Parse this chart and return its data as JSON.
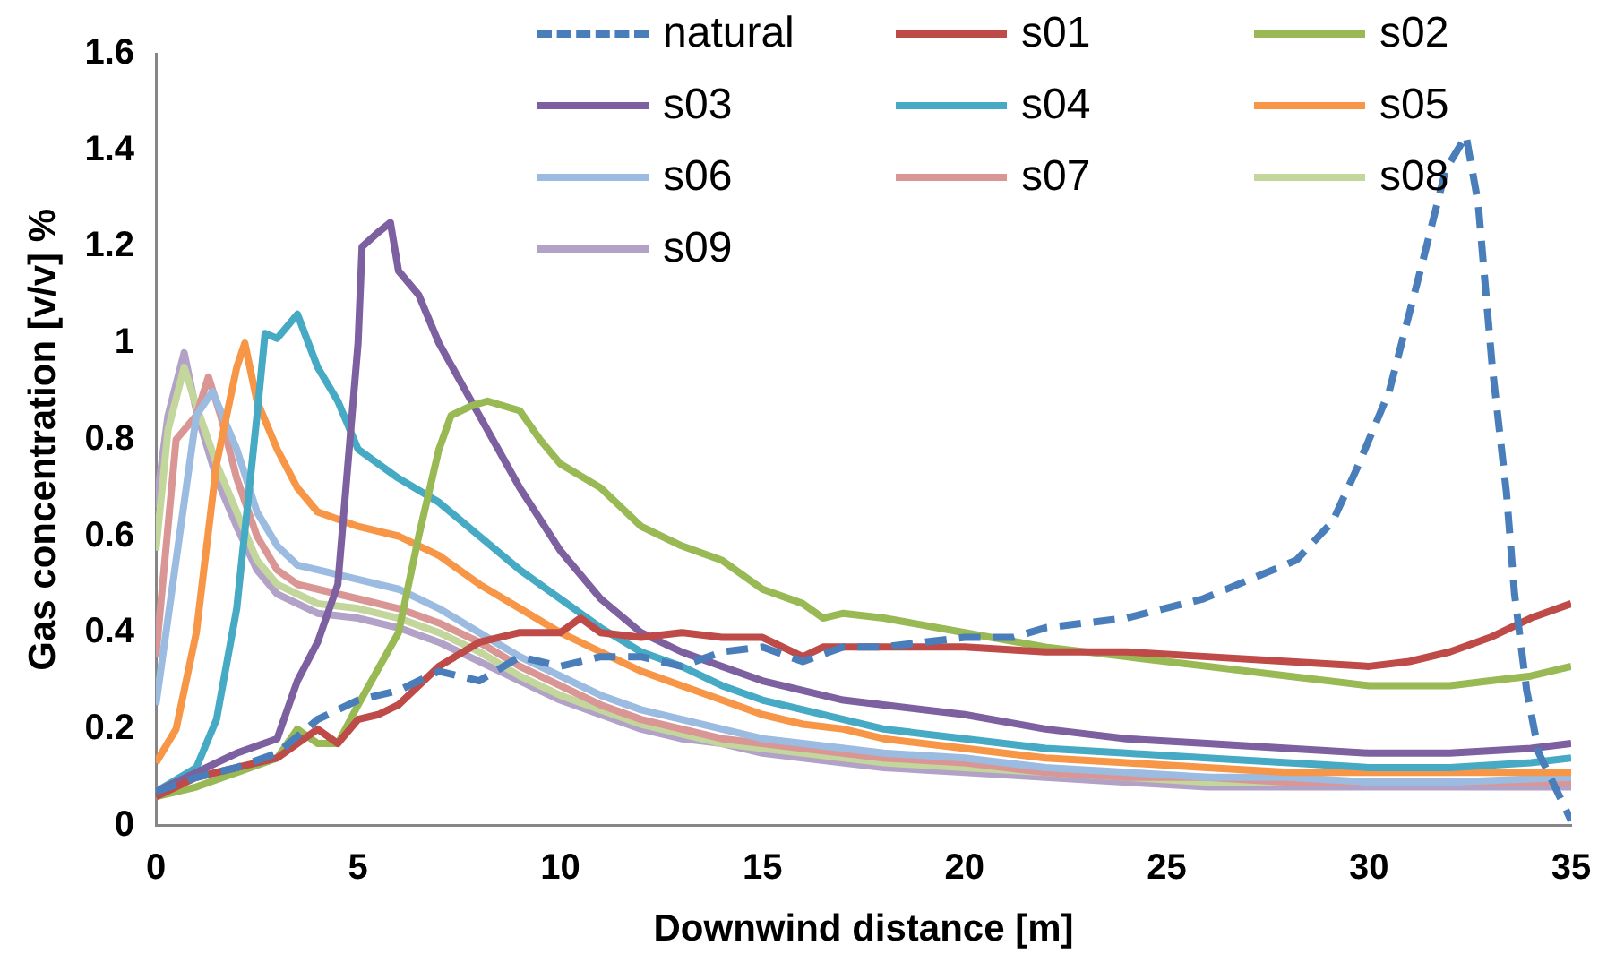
{
  "chart_data": {
    "type": "line",
    "xlabel": "Downwind distance [m]",
    "ylabel": "Gas concentration [v/v] %",
    "xlim": [
      0,
      35
    ],
    "xticks": [
      0,
      5,
      10,
      15,
      20,
      25,
      30,
      35
    ],
    "ylim": [
      0,
      1.6
    ],
    "yticks": [
      0,
      0.2,
      0.4,
      0.6,
      0.8,
      1,
      1.2,
      1.4,
      1.6
    ],
    "grid": false,
    "legend": "top right",
    "marker": "none",
    "series": [
      {
        "name": "natural",
        "color": "#4a7ebb",
        "line_style": "dashed",
        "x": [
          0,
          1,
          2,
          3,
          4,
          5,
          6,
          7,
          8,
          9,
          10,
          11,
          12,
          13,
          14,
          15,
          16,
          17,
          18,
          20,
          21.2,
          22,
          24,
          25.9,
          28.2,
          29.1,
          29.7,
          30.5,
          31.3,
          31.9,
          32.4,
          32.7,
          33.05,
          33.4,
          33.6,
          33.9,
          34.2,
          35
        ],
        "values": [
          0.07,
          0.1,
          0.12,
          0.15,
          0.22,
          0.26,
          0.28,
          0.32,
          0.3,
          0.35,
          0.33,
          0.35,
          0.35,
          0.33,
          0.36,
          0.37,
          0.34,
          0.37,
          0.37,
          0.39,
          0.39,
          0.41,
          0.43,
          0.47,
          0.55,
          0.63,
          0.74,
          0.9,
          1.16,
          1.36,
          1.43,
          1.29,
          0.95,
          0.69,
          0.48,
          0.28,
          0.15,
          0.01
        ]
      },
      {
        "name": "s01",
        "color": "#be4b48",
        "x": [
          0,
          1,
          2,
          3,
          4,
          4.5,
          5,
          5.5,
          6,
          7,
          8,
          9,
          10,
          10.5,
          11,
          12,
          13,
          14,
          15,
          16,
          16.5,
          18,
          20,
          22,
          24,
          26,
          28,
          30,
          31,
          32,
          33,
          34,
          35
        ],
        "values": [
          0.06,
          0.1,
          0.12,
          0.14,
          0.2,
          0.17,
          0.22,
          0.23,
          0.25,
          0.33,
          0.38,
          0.4,
          0.4,
          0.43,
          0.4,
          0.39,
          0.4,
          0.39,
          0.39,
          0.35,
          0.37,
          0.37,
          0.37,
          0.36,
          0.36,
          0.35,
          0.34,
          0.33,
          0.34,
          0.36,
          0.39,
          0.43,
          0.46
        ]
      },
      {
        "name": "s02",
        "color": "#98b954",
        "x": [
          0,
          1,
          2,
          3,
          3.5,
          4,
          4.5,
          5,
          6,
          6.5,
          7,
          7.3,
          7.8,
          8.2,
          9,
          9.5,
          10,
          11,
          12,
          13,
          14,
          15,
          16,
          16.5,
          17,
          18,
          20,
          22,
          24,
          26,
          28,
          30,
          32,
          33,
          34,
          35
        ],
        "values": [
          0.06,
          0.08,
          0.11,
          0.14,
          0.2,
          0.17,
          0.17,
          0.25,
          0.4,
          0.6,
          0.78,
          0.85,
          0.87,
          0.88,
          0.86,
          0.8,
          0.75,
          0.7,
          0.62,
          0.58,
          0.55,
          0.49,
          0.46,
          0.43,
          0.44,
          0.43,
          0.4,
          0.37,
          0.35,
          0.33,
          0.31,
          0.29,
          0.29,
          0.3,
          0.31,
          0.33
        ]
      },
      {
        "name": "s03",
        "color": "#7d60a0",
        "x": [
          0,
          1,
          2,
          3,
          3.5,
          4,
          4.5,
          5,
          5.1,
          5.5,
          5.8,
          6,
          6.5,
          7,
          8,
          9,
          10,
          11,
          12,
          13,
          14,
          15,
          16,
          17,
          18,
          20,
          22,
          24,
          26,
          28,
          30,
          32,
          34,
          35
        ],
        "values": [
          0.07,
          0.11,
          0.15,
          0.18,
          0.3,
          0.38,
          0.5,
          1.0,
          1.2,
          1.23,
          1.25,
          1.15,
          1.1,
          1.0,
          0.85,
          0.7,
          0.57,
          0.47,
          0.4,
          0.36,
          0.33,
          0.3,
          0.28,
          0.26,
          0.25,
          0.23,
          0.2,
          0.18,
          0.17,
          0.16,
          0.15,
          0.15,
          0.16,
          0.17
        ]
      },
      {
        "name": "s04",
        "color": "#46aac5",
        "x": [
          0,
          1,
          1.5,
          2,
          2.5,
          2.7,
          3,
          3.5,
          4,
          4.5,
          5,
          6,
          7,
          8,
          9,
          10,
          11,
          12,
          13,
          14,
          15,
          16,
          17,
          18,
          20,
          22,
          24,
          26,
          28,
          30,
          32,
          34,
          35
        ],
        "values": [
          0.07,
          0.12,
          0.22,
          0.45,
          0.85,
          1.02,
          1.01,
          1.06,
          0.95,
          0.88,
          0.78,
          0.72,
          0.67,
          0.6,
          0.53,
          0.47,
          0.41,
          0.36,
          0.33,
          0.29,
          0.26,
          0.24,
          0.22,
          0.2,
          0.18,
          0.16,
          0.15,
          0.14,
          0.13,
          0.12,
          0.12,
          0.13,
          0.14
        ]
      },
      {
        "name": "s05",
        "color": "#f79646",
        "x": [
          0,
          0.5,
          1,
          1.5,
          2,
          2.2,
          2.5,
          3,
          3.5,
          4,
          5,
          6,
          7,
          8,
          9,
          10,
          11,
          12,
          13,
          14,
          15,
          16,
          17,
          18,
          20,
          22,
          24,
          26,
          28,
          30,
          32,
          35
        ],
        "values": [
          0.13,
          0.2,
          0.4,
          0.75,
          0.95,
          1.0,
          0.88,
          0.78,
          0.7,
          0.65,
          0.62,
          0.6,
          0.56,
          0.5,
          0.45,
          0.4,
          0.36,
          0.32,
          0.29,
          0.26,
          0.23,
          0.21,
          0.2,
          0.18,
          0.16,
          0.14,
          0.13,
          0.12,
          0.11,
          0.11,
          0.11,
          0.11
        ]
      },
      {
        "name": "s06",
        "color": "#9bbbe0",
        "x": [
          0,
          0.5,
          1,
          1.4,
          2,
          2.5,
          3,
          3.5,
          4,
          5,
          6,
          7,
          8,
          9,
          10,
          11,
          12,
          13,
          14,
          15,
          16,
          18,
          20,
          22,
          24,
          26,
          28,
          30,
          32,
          35
        ],
        "values": [
          0.25,
          0.55,
          0.85,
          0.9,
          0.78,
          0.65,
          0.58,
          0.54,
          0.53,
          0.51,
          0.49,
          0.45,
          0.4,
          0.35,
          0.31,
          0.27,
          0.24,
          0.22,
          0.2,
          0.18,
          0.17,
          0.15,
          0.14,
          0.12,
          0.11,
          0.1,
          0.1,
          0.09,
          0.09,
          0.1
        ]
      },
      {
        "name": "s07",
        "color": "#d99694",
        "x": [
          0,
          0.5,
          1,
          1.3,
          1.6,
          2,
          2.5,
          3,
          3.5,
          4,
          5,
          6,
          7,
          8,
          9,
          10,
          11,
          12,
          13,
          14,
          15,
          16,
          18,
          20,
          22,
          24,
          26,
          28,
          30,
          32,
          35
        ],
        "values": [
          0.35,
          0.8,
          0.85,
          0.93,
          0.85,
          0.72,
          0.6,
          0.53,
          0.5,
          0.49,
          0.47,
          0.45,
          0.42,
          0.38,
          0.33,
          0.29,
          0.25,
          0.22,
          0.2,
          0.18,
          0.17,
          0.16,
          0.14,
          0.13,
          0.11,
          0.1,
          0.1,
          0.09,
          0.09,
          0.09,
          0.09
        ]
      },
      {
        "name": "s08",
        "color": "#c3d69b",
        "x": [
          0,
          0.3,
          0.7,
          1,
          1.5,
          2,
          2.5,
          3,
          3.5,
          4,
          5,
          6,
          7,
          8,
          9,
          10,
          11,
          12,
          13,
          14,
          15,
          16,
          18,
          20,
          22,
          24,
          26,
          28,
          30,
          32,
          35
        ],
        "values": [
          0.57,
          0.82,
          0.95,
          0.87,
          0.75,
          0.65,
          0.55,
          0.5,
          0.48,
          0.46,
          0.45,
          0.43,
          0.4,
          0.36,
          0.31,
          0.27,
          0.24,
          0.21,
          0.19,
          0.17,
          0.16,
          0.15,
          0.13,
          0.12,
          0.11,
          0.1,
          0.09,
          0.09,
          0.09,
          0.09,
          0.09
        ]
      },
      {
        "name": "s09",
        "color": "#b3a2c7",
        "x": [
          0,
          0.3,
          0.7,
          1,
          1.5,
          2,
          2.5,
          3,
          3.5,
          4,
          5,
          6,
          7,
          8,
          9,
          10,
          11,
          12,
          13,
          14,
          15,
          16,
          18,
          20,
          22,
          24,
          26,
          28,
          30,
          32,
          35
        ],
        "values": [
          0.66,
          0.85,
          0.98,
          0.86,
          0.72,
          0.62,
          0.53,
          0.48,
          0.46,
          0.44,
          0.43,
          0.41,
          0.38,
          0.34,
          0.3,
          0.26,
          0.23,
          0.2,
          0.18,
          0.17,
          0.15,
          0.14,
          0.12,
          0.11,
          0.1,
          0.09,
          0.08,
          0.08,
          0.08,
          0.08,
          0.08
        ]
      }
    ]
  }
}
